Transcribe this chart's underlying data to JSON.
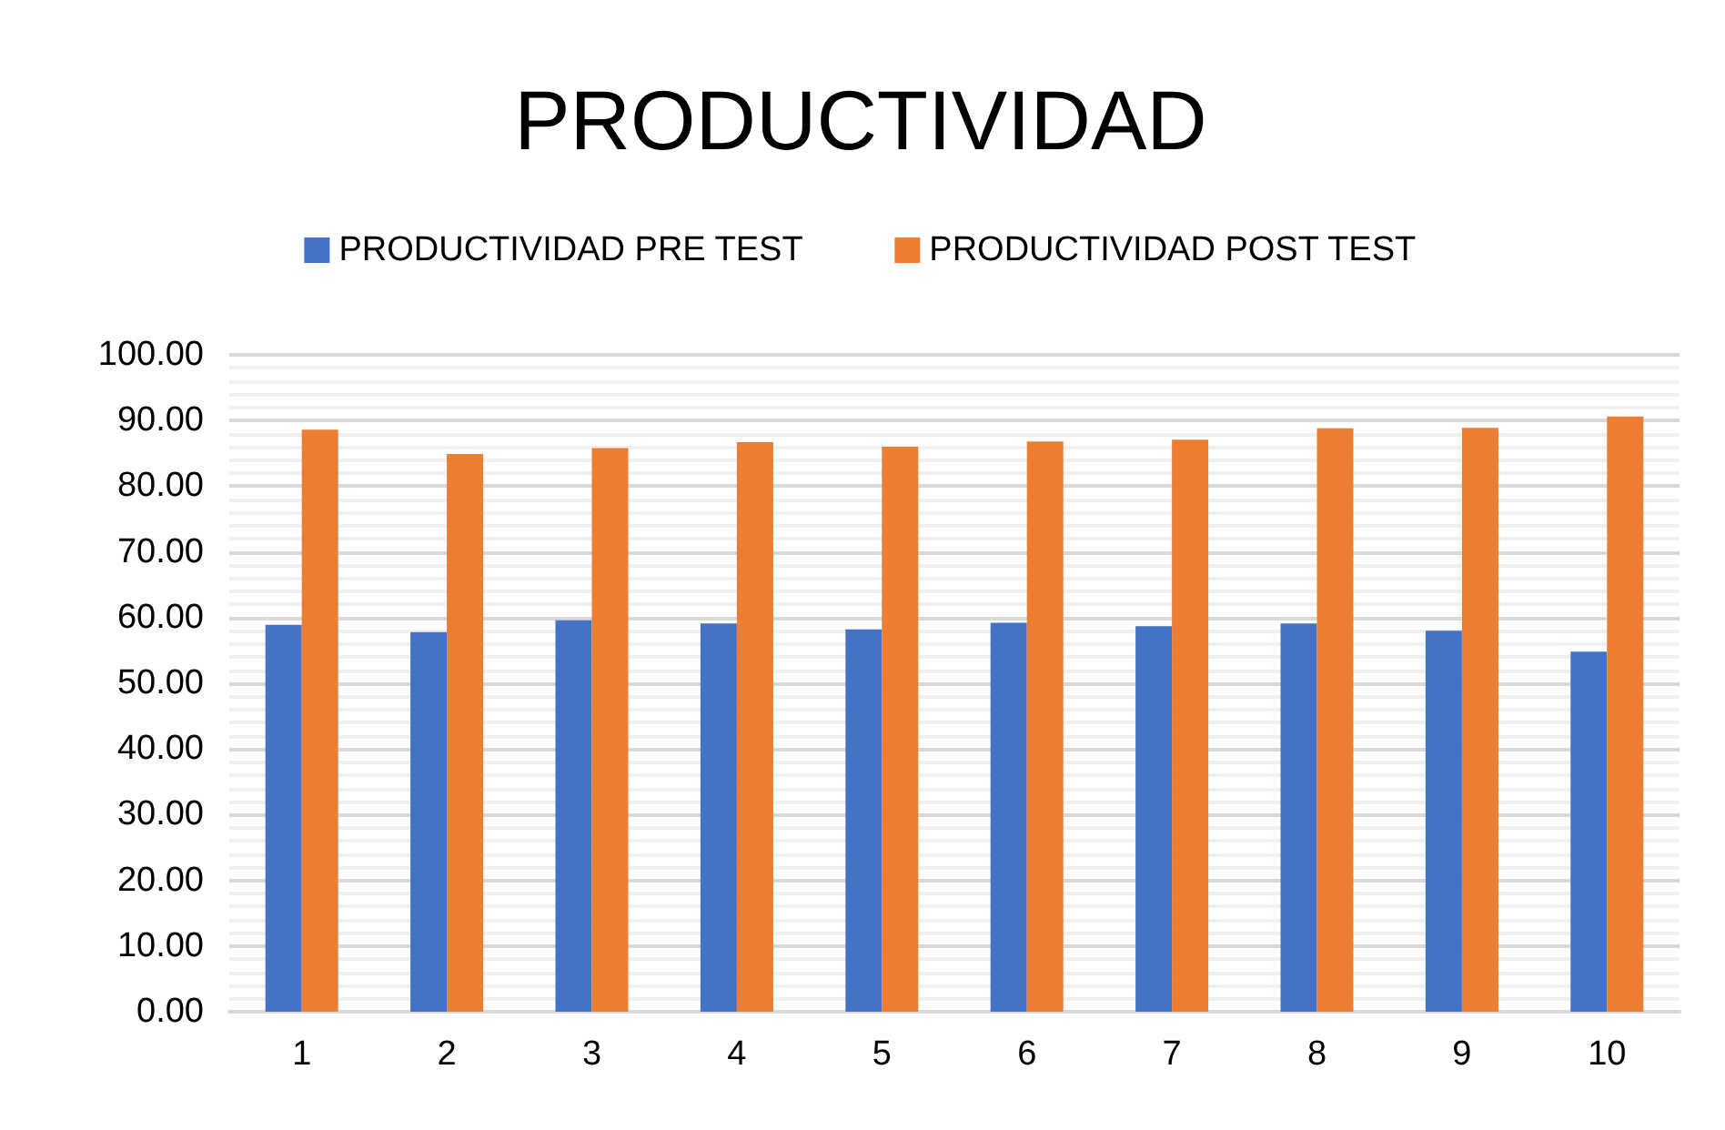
{
  "chart_data": {
    "type": "bar",
    "title": "PRODUCTIVIDAD",
    "categories": [
      "1",
      "2",
      "3",
      "4",
      "5",
      "6",
      "7",
      "8",
      "9",
      "10"
    ],
    "series": [
      {
        "name": "PRODUCTIVIDAD PRE TEST",
        "color": "#4472c4",
        "values": [
          58.9,
          57.8,
          59.6,
          59.1,
          58.2,
          59.2,
          58.7,
          59.1,
          58.0,
          54.8
        ]
      },
      {
        "name": "PRODUCTIVIDAD POST TEST",
        "color": "#ed7d31",
        "values": [
          88.6,
          84.9,
          85.8,
          86.7,
          86.0,
          86.8,
          87.1,
          88.8,
          88.9,
          90.6
        ]
      }
    ],
    "ylim": [
      0,
      100
    ],
    "yticks": [
      {
        "value": 0,
        "label": "0.00"
      },
      {
        "value": 10,
        "label": "10.00"
      },
      {
        "value": 20,
        "label": "20.00"
      },
      {
        "value": 30,
        "label": "30.00"
      },
      {
        "value": 40,
        "label": "40.00"
      },
      {
        "value": 50,
        "label": "50.00"
      },
      {
        "value": 60,
        "label": "60.00"
      },
      {
        "value": 70,
        "label": "70.00"
      },
      {
        "value": 80,
        "label": "80.00"
      },
      {
        "value": 90,
        "label": "90.00"
      },
      {
        "value": 100,
        "label": "100.00"
      }
    ],
    "grid": true,
    "legend": "top"
  }
}
